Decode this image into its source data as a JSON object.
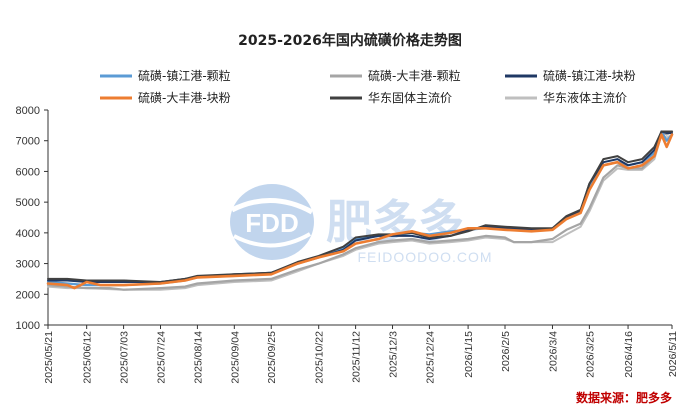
{
  "chart_data": {
    "type": "line",
    "title": "2025-2026年国内硫磺价格走势图",
    "ylim": [
      1000,
      8000
    ],
    "yticks": [
      1000,
      2000,
      3000,
      4000,
      5000,
      6000,
      7000,
      8000
    ],
    "xlim": [
      "2025-05-21",
      "2026-05-11"
    ],
    "xticks": [
      "2025/05/21",
      "2025/06/12",
      "2025/07/03",
      "2025/07/24",
      "2025/08/14",
      "2025/09/04",
      "2025/09/25",
      "2025/10/22",
      "2025/11/12",
      "2025/12/3",
      "2025/12/24",
      "2026/1/15",
      "2026/2/5",
      "2026/3/4",
      "2026/3/25",
      "2026/4/16",
      "2026/5/11"
    ],
    "grid": false,
    "legend_position": "top",
    "source_label": "数据来源：肥多多",
    "watermark": {
      "logo_text": "FDD",
      "brand": "肥多多",
      "url": "FEIDOODOO.COM"
    },
    "series": [
      {
        "name": "硫磺-镇江港-颗粒",
        "color": "#5b9bd5",
        "width": 2.2,
        "points": [
          [
            "2025-05-21",
            2400
          ],
          [
            "2025-06-01",
            2350
          ],
          [
            "2025-06-12",
            2300
          ],
          [
            "2025-07-03",
            2300
          ],
          [
            "2025-07-24",
            2350
          ],
          [
            "2025-08-07",
            2450
          ],
          [
            "2025-08-14",
            2550
          ],
          [
            "2025-09-04",
            2600
          ],
          [
            "2025-09-25",
            2700
          ],
          [
            "2025-10-10",
            3000
          ],
          [
            "2025-10-22",
            3200
          ],
          [
            "2025-11-05",
            3500
          ],
          [
            "2025-11-12",
            3800
          ],
          [
            "2025-11-25",
            3900
          ],
          [
            "2025-12-03",
            3900
          ],
          [
            "2025-12-14",
            4000
          ],
          [
            "2025-12-24",
            3950
          ],
          [
            "2026-01-05",
            4050
          ],
          [
            "2026-01-15",
            4100
          ],
          [
            "2026-01-25",
            4150
          ],
          [
            "2026-02-05",
            4150
          ],
          [
            "2026-02-20",
            4050
          ],
          [
            "2026-03-04",
            4150
          ],
          [
            "2026-03-12",
            4500
          ],
          [
            "2026-03-20",
            4700
          ],
          [
            "2026-03-25",
            5500
          ],
          [
            "2026-04-02",
            6200
          ],
          [
            "2026-04-10",
            6300
          ],
          [
            "2026-04-16",
            6200
          ],
          [
            "2026-04-24",
            6300
          ],
          [
            "2026-05-01",
            6600
          ],
          [
            "2026-05-05",
            7300
          ],
          [
            "2026-05-08",
            7000
          ],
          [
            "2026-05-11",
            7200
          ]
        ]
      },
      {
        "name": "硫磺-大丰港-颗粒",
        "color": "#a5a5a5",
        "width": 2.2,
        "points": [
          [
            "2025-05-21",
            2300
          ],
          [
            "2025-06-01",
            2250
          ],
          [
            "2025-06-12",
            2200
          ],
          [
            "2025-06-25",
            2200
          ],
          [
            "2025-07-03",
            2150
          ],
          [
            "2025-07-24",
            2200
          ],
          [
            "2025-08-07",
            2250
          ],
          [
            "2025-08-14",
            2350
          ],
          [
            "2025-09-04",
            2450
          ],
          [
            "2025-09-25",
            2500
          ],
          [
            "2025-10-10",
            2800
          ],
          [
            "2025-10-22",
            3000
          ],
          [
            "2025-11-05",
            3300
          ],
          [
            "2025-11-12",
            3500
          ],
          [
            "2025-11-25",
            3700
          ],
          [
            "2025-12-03",
            3750
          ],
          [
            "2025-12-14",
            3800
          ],
          [
            "2025-12-24",
            3700
          ],
          [
            "2026-01-05",
            3750
          ],
          [
            "2026-01-15",
            3800
          ],
          [
            "2026-01-25",
            3900
          ],
          [
            "2026-02-05",
            3850
          ],
          [
            "2026-02-10",
            3700
          ],
          [
            "2026-02-20",
            3700
          ],
          [
            "2026-03-04",
            3800
          ],
          [
            "2026-03-12",
            4100
          ],
          [
            "2026-03-20",
            4300
          ],
          [
            "2026-03-25",
            4800
          ],
          [
            "2026-04-02",
            5800
          ],
          [
            "2026-04-10",
            6200
          ],
          [
            "2026-04-16",
            6100
          ],
          [
            "2026-04-24",
            6100
          ],
          [
            "2026-05-01",
            6500
          ],
          [
            "2026-05-05",
            7300
          ],
          [
            "2026-05-08",
            7200
          ],
          [
            "2026-05-11",
            7300
          ]
        ]
      },
      {
        "name": "硫磺-镇江港-块粉",
        "color": "#1f3864",
        "width": 2.0,
        "points": [
          [
            "2025-05-21",
            2450
          ],
          [
            "2025-06-01",
            2450
          ],
          [
            "2025-06-12",
            2400
          ],
          [
            "2025-07-03",
            2400
          ],
          [
            "2025-07-24",
            2400
          ],
          [
            "2025-08-07",
            2500
          ],
          [
            "2025-08-14",
            2550
          ],
          [
            "2025-09-04",
            2650
          ],
          [
            "2025-09-25",
            2700
          ],
          [
            "2025-10-10",
            3000
          ],
          [
            "2025-10-22",
            3200
          ],
          [
            "2025-11-05",
            3450
          ],
          [
            "2025-11-12",
            3750
          ],
          [
            "2025-11-25",
            3900
          ],
          [
            "2025-12-03",
            3900
          ],
          [
            "2025-12-14",
            3900
          ],
          [
            "2025-12-24",
            3800
          ],
          [
            "2026-01-05",
            3900
          ],
          [
            "2026-01-15",
            4100
          ],
          [
            "2026-01-25",
            4200
          ],
          [
            "2026-02-05",
            4150
          ],
          [
            "2026-02-20",
            4100
          ],
          [
            "2026-03-04",
            4100
          ],
          [
            "2026-03-12",
            4500
          ],
          [
            "2026-03-20",
            4700
          ],
          [
            "2026-03-25",
            5600
          ],
          [
            "2026-04-02",
            6300
          ],
          [
            "2026-04-10",
            6400
          ],
          [
            "2026-04-16",
            6200
          ],
          [
            "2026-04-24",
            6300
          ],
          [
            "2026-05-01",
            6700
          ],
          [
            "2026-05-05",
            7300
          ],
          [
            "2026-05-08",
            7250
          ],
          [
            "2026-05-11",
            7250
          ]
        ]
      },
      {
        "name": "硫磺-大丰港-块粉",
        "color": "#ed7d31",
        "width": 2.6,
        "points": [
          [
            "2025-05-21",
            2350
          ],
          [
            "2025-06-01",
            2300
          ],
          [
            "2025-06-05",
            2200
          ],
          [
            "2025-06-12",
            2400
          ],
          [
            "2025-06-20",
            2300
          ],
          [
            "2025-07-03",
            2300
          ],
          [
            "2025-07-24",
            2350
          ],
          [
            "2025-08-07",
            2450
          ],
          [
            "2025-08-14",
            2550
          ],
          [
            "2025-09-04",
            2600
          ],
          [
            "2025-09-25",
            2650
          ],
          [
            "2025-10-10",
            3000
          ],
          [
            "2025-10-22",
            3200
          ],
          [
            "2025-11-05",
            3400
          ],
          [
            "2025-11-12",
            3650
          ],
          [
            "2025-11-25",
            3800
          ],
          [
            "2025-12-03",
            3950
          ],
          [
            "2025-12-14",
            4050
          ],
          [
            "2025-12-24",
            3900
          ],
          [
            "2026-01-05",
            4000
          ],
          [
            "2026-01-15",
            4150
          ],
          [
            "2026-01-25",
            4150
          ],
          [
            "2026-02-05",
            4100
          ],
          [
            "2026-02-20",
            4050
          ],
          [
            "2026-03-04",
            4100
          ],
          [
            "2026-03-12",
            4450
          ],
          [
            "2026-03-20",
            4650
          ],
          [
            "2026-03-25",
            5400
          ],
          [
            "2026-04-02",
            6200
          ],
          [
            "2026-04-10",
            6300
          ],
          [
            "2026-04-16",
            6100
          ],
          [
            "2026-04-24",
            6200
          ],
          [
            "2026-05-01",
            6500
          ],
          [
            "2026-05-05",
            7200
          ],
          [
            "2026-05-08",
            6800
          ],
          [
            "2026-05-11",
            7200
          ]
        ]
      },
      {
        "name": "华东固体主流价",
        "color": "#404040",
        "width": 2.0,
        "points": [
          [
            "2025-05-21",
            2500
          ],
          [
            "2025-06-01",
            2500
          ],
          [
            "2025-06-12",
            2450
          ],
          [
            "2025-07-03",
            2450
          ],
          [
            "2025-07-24",
            2400
          ],
          [
            "2025-08-07",
            2500
          ],
          [
            "2025-08-14",
            2600
          ],
          [
            "2025-09-04",
            2650
          ],
          [
            "2025-09-25",
            2700
          ],
          [
            "2025-10-10",
            3050
          ],
          [
            "2025-10-22",
            3250
          ],
          [
            "2025-11-05",
            3550
          ],
          [
            "2025-11-12",
            3850
          ],
          [
            "2025-11-25",
            3950
          ],
          [
            "2025-12-03",
            3950
          ],
          [
            "2025-12-14",
            4000
          ],
          [
            "2025-12-24",
            3850
          ],
          [
            "2026-01-05",
            3900
          ],
          [
            "2026-01-15",
            4050
          ],
          [
            "2026-01-25",
            4250
          ],
          [
            "2026-02-05",
            4200
          ],
          [
            "2026-02-20",
            4150
          ],
          [
            "2026-03-04",
            4150
          ],
          [
            "2026-03-12",
            4550
          ],
          [
            "2026-03-20",
            4750
          ],
          [
            "2026-03-25",
            5600
          ],
          [
            "2026-04-02",
            6400
          ],
          [
            "2026-04-10",
            6500
          ],
          [
            "2026-04-16",
            6300
          ],
          [
            "2026-04-24",
            6400
          ],
          [
            "2026-05-01",
            6800
          ],
          [
            "2026-05-05",
            7300
          ],
          [
            "2026-05-08",
            7300
          ],
          [
            "2026-05-11",
            7300
          ]
        ]
      },
      {
        "name": "华东液体主流价",
        "color": "#bfbfbf",
        "width": 2.0,
        "points": [
          [
            "2025-05-21",
            2250
          ],
          [
            "2025-06-01",
            2200
          ],
          [
            "2025-06-12",
            2200
          ],
          [
            "2025-07-03",
            2150
          ],
          [
            "2025-07-24",
            2150
          ],
          [
            "2025-08-07",
            2200
          ],
          [
            "2025-08-14",
            2300
          ],
          [
            "2025-09-04",
            2400
          ],
          [
            "2025-09-25",
            2450
          ],
          [
            "2025-10-10",
            2750
          ],
          [
            "2025-10-22",
            3000
          ],
          [
            "2025-11-05",
            3250
          ],
          [
            "2025-11-12",
            3450
          ],
          [
            "2025-11-25",
            3650
          ],
          [
            "2025-12-03",
            3700
          ],
          [
            "2025-12-14",
            3750
          ],
          [
            "2025-12-24",
            3650
          ],
          [
            "2026-01-05",
            3700
          ],
          [
            "2026-01-15",
            3750
          ],
          [
            "2026-01-25",
            3850
          ],
          [
            "2026-02-05",
            3800
          ],
          [
            "2026-02-10",
            3700
          ],
          [
            "2026-02-20",
            3700
          ],
          [
            "2026-03-04",
            3700
          ],
          [
            "2026-03-12",
            3950
          ],
          [
            "2026-03-20",
            4200
          ],
          [
            "2026-03-25",
            4700
          ],
          [
            "2026-04-02",
            5700
          ],
          [
            "2026-04-10",
            6100
          ],
          [
            "2026-04-16",
            6050
          ],
          [
            "2026-04-24",
            6050
          ],
          [
            "2026-05-01",
            6400
          ],
          [
            "2026-05-05",
            7200
          ],
          [
            "2026-05-08",
            7100
          ],
          [
            "2026-05-11",
            7200
          ]
        ]
      }
    ]
  }
}
